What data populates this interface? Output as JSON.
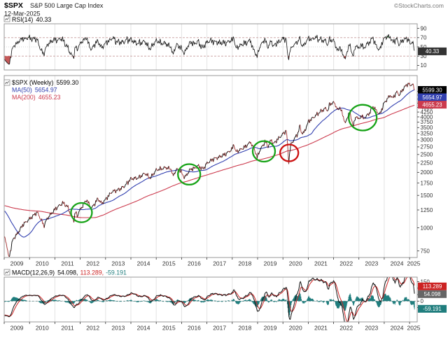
{
  "header": {
    "symbol": "$SPX",
    "title": "S&P 500 Large Cap Index",
    "date": "12-Mar-2025",
    "credit": "©StockCharts.com"
  },
  "rsi_panel": {
    "legend": "RSI(14)",
    "value": "40.33",
    "ticks": [
      90,
      70,
      50,
      30,
      10
    ],
    "overbought": 70,
    "oversold": 30,
    "midline": 50
  },
  "price_panel": {
    "legend": "$SPX (Weekly)",
    "close": "5599.30",
    "ma50_legend": "MA(50)",
    "ma50_value": "5654.97",
    "ma200_legend": "MA(200)",
    "ma200_value": "4655.23",
    "ticks": [
      5500,
      5250,
      5000,
      4750,
      4500,
      4250,
      4000,
      3750,
      3500,
      3250,
      3000,
      2750,
      2500,
      2250,
      2000,
      1750,
      1500,
      1250,
      1000,
      750
    ]
  },
  "macd_panel": {
    "legend": "MACD(12,26,9)",
    "macd_legend": "54.098,",
    "signal_legend": "113.289,",
    "hist_legend": "-59.191",
    "macd_box": "54.098",
    "signal_box": "113.289",
    "hist_box": "-59.191",
    "ticks": [
      150,
      100,
      50,
      0,
      -50
    ]
  },
  "x_axis": {
    "years": [
      2009,
      2010,
      2011,
      2012,
      2013,
      2014,
      2015,
      2016,
      2017,
      2018,
      2019,
      2020,
      2021,
      2022,
      2023,
      2024,
      2025
    ]
  },
  "colors": {
    "up": "#000000",
    "down": "#9e2b2b",
    "ma50": "#3341b0",
    "ma200": "#cc3b4e",
    "rsi": "#111111",
    "rsi_ob_fill": "#1e7a2e",
    "rsi_os_fill": "#b22222",
    "macd": "#111111",
    "signal": "#cc2222",
    "hist": "#1f7d7d",
    "green_circle": "#17a317",
    "red_circle": "#cc1111",
    "box_price_bg": "#000000",
    "box_rsi_bg": "#333333",
    "box_macd_bg": "#666666",
    "grid": "#e3e3e3",
    "border": "#999999",
    "dashed": "#c89b9b"
  },
  "annotations": {
    "green_circles": [
      {
        "t": 2012.05,
        "v": 1210,
        "r": 15
      },
      {
        "t": 2016.3,
        "v": 1950,
        "r": 16
      },
      {
        "t": 2019.25,
        "v": 2600,
        "r": 16
      },
      {
        "t": 2023.15,
        "v": 3960,
        "r": 20
      }
    ],
    "red_circle": {
      "t": 2020.25,
      "v": 2550,
      "r": 13
    }
  },
  "chart_data": {
    "type": "line",
    "title": "$SPX S&P 500 Large Cap Index (Weekly) with RSI(14), MA(50), MA(200), MACD(12,26,9)",
    "x_unit": "decimal_year",
    "x_range": [
      2009,
      2025.25
    ],
    "price_scale": "log",
    "price_axis_range": [
      690,
      6700
    ],
    "rsi_axis_range": [
      0,
      100
    ],
    "macd_axis_range": [
      -160,
      185
    ],
    "last_values": {
      "close": 5599.3,
      "ma50": 5654.97,
      "ma200": 4655.23,
      "rsi14": 40.33,
      "macd": 54.098,
      "macd_signal": 113.289,
      "macd_hist": -59.191
    },
    "derived_series": [
      "MA50 = 50-week SMA of close",
      "MA200 = 200-week SMA of close",
      "RSI(14) Wilder weekly",
      "MACD = EMA12-EMA26 weekly, signal EMA9"
    ],
    "price_anchors": [
      [
        2005.0,
        1202
      ],
      [
        2005.5,
        1194
      ],
      [
        2006.0,
        1280
      ],
      [
        2006.5,
        1270
      ],
      [
        2007.0,
        1418
      ],
      [
        2007.55,
        1530
      ],
      [
        2007.75,
        1526
      ],
      [
        2008.0,
        1411
      ],
      [
        2008.2,
        1330
      ],
      [
        2008.45,
        1400
      ],
      [
        2008.7,
        1255
      ],
      [
        2008.78,
        1166
      ],
      [
        2008.87,
        940
      ],
      [
        2008.95,
        880
      ],
      [
        2009.0,
        903
      ],
      [
        2009.08,
        835
      ],
      [
        2009.18,
        683
      ],
      [
        2009.35,
        870
      ],
      [
        2009.5,
        920
      ],
      [
        2009.75,
        1045
      ],
      [
        2010.0,
        1115
      ],
      [
        2010.3,
        1217
      ],
      [
        2010.52,
        1065
      ],
      [
        2010.56,
        1022
      ],
      [
        2010.7,
        1125
      ],
      [
        2011.0,
        1258
      ],
      [
        2011.17,
        1320
      ],
      [
        2011.33,
        1364
      ],
      [
        2011.52,
        1290
      ],
      [
        2011.6,
        1200
      ],
      [
        2011.75,
        1099
      ],
      [
        2011.82,
        1225
      ],
      [
        2011.88,
        1158
      ],
      [
        2011.95,
        1220
      ],
      [
        2012.0,
        1258
      ],
      [
        2012.25,
        1419
      ],
      [
        2012.45,
        1278
      ],
      [
        2012.7,
        1440
      ],
      [
        2012.85,
        1353
      ],
      [
        2013.0,
        1426
      ],
      [
        2013.25,
        1569
      ],
      [
        2013.5,
        1606
      ],
      [
        2013.75,
        1682
      ],
      [
        2014.0,
        1848
      ],
      [
        2014.3,
        1865
      ],
      [
        2014.55,
        1978
      ],
      [
        2014.77,
        1862
      ],
      [
        2015.0,
        2059
      ],
      [
        2015.4,
        2126
      ],
      [
        2015.6,
        2080
      ],
      [
        2015.65,
        1900
      ],
      [
        2015.8,
        2079
      ],
      [
        2015.95,
        2044
      ],
      [
        2016.12,
        1865
      ],
      [
        2016.35,
        2080
      ],
      [
        2016.5,
        2099
      ],
      [
        2016.65,
        2170
      ],
      [
        2016.85,
        2085
      ],
      [
        2017.0,
        2239
      ],
      [
        2017.25,
        2363
      ],
      [
        2017.5,
        2423
      ],
      [
        2017.75,
        2519
      ],
      [
        2018.0,
        2674
      ],
      [
        2018.07,
        2873
      ],
      [
        2018.13,
        2581
      ],
      [
        2018.3,
        2640
      ],
      [
        2018.55,
        2780
      ],
      [
        2018.73,
        2930
      ],
      [
        2018.8,
        2760
      ],
      [
        2018.9,
        2633
      ],
      [
        2018.98,
        2400
      ],
      [
        2019.07,
        2600
      ],
      [
        2019.3,
        2946
      ],
      [
        2019.42,
        2752
      ],
      [
        2019.55,
        3026
      ],
      [
        2019.62,
        2847
      ],
      [
        2019.75,
        2978
      ],
      [
        2020.0,
        3231
      ],
      [
        2020.14,
        3380
      ],
      [
        2020.23,
        2280
      ],
      [
        2020.3,
        2790
      ],
      [
        2020.45,
        3044
      ],
      [
        2020.6,
        3271
      ],
      [
        2020.67,
        3580
      ],
      [
        2020.74,
        3270
      ],
      [
        2020.83,
        3270
      ],
      [
        2021.0,
        3756
      ],
      [
        2021.25,
        4019
      ],
      [
        2021.5,
        4297
      ],
      [
        2021.7,
        4455
      ],
      [
        2021.77,
        4300
      ],
      [
        2021.85,
        4700
      ],
      [
        2022.0,
        4766
      ],
      [
        2022.03,
        4796
      ],
      [
        2022.17,
        4328
      ],
      [
        2022.25,
        4543
      ],
      [
        2022.45,
        3750
      ],
      [
        2022.47,
        3675
      ],
      [
        2022.62,
        4280
      ],
      [
        2022.78,
        3585
      ],
      [
        2022.9,
        4080
      ],
      [
        2023.0,
        3840
      ],
      [
        2023.1,
        4100
      ],
      [
        2023.18,
        3900
      ],
      [
        2023.4,
        4170
      ],
      [
        2023.55,
        4560
      ],
      [
        2023.82,
        4117
      ],
      [
        2024.0,
        4770
      ],
      [
        2024.25,
        5254
      ],
      [
        2024.32,
        5035
      ],
      [
        2024.5,
        5460
      ],
      [
        2024.6,
        5250
      ],
      [
        2024.75,
        5700
      ],
      [
        2024.95,
        6090
      ],
      [
        2025.04,
        5868
      ],
      [
        2025.1,
        6115
      ],
      [
        2025.2,
        5599.3
      ]
    ]
  }
}
